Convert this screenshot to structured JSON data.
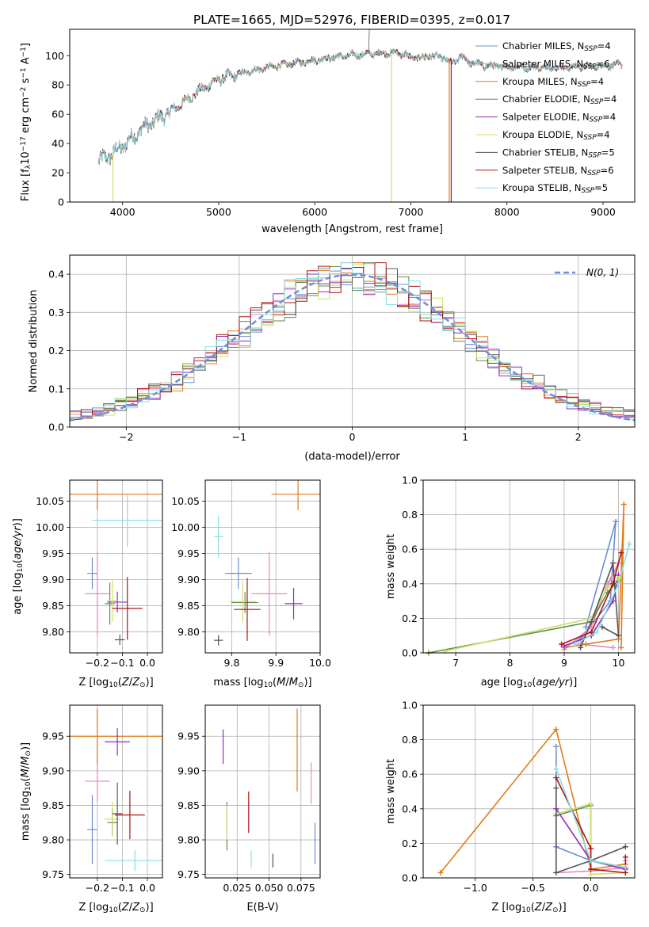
{
  "title": "PLATE=1665, MJD=52976, FIBERID=0395, z=0.017",
  "colors": {
    "Chabrier MILES": "#6b8fd6",
    "Salpeter MILES": "#e987c0",
    "Kroupa MILES": "#e07b1a",
    "Chabrier ELODIE": "#5e8f4e",
    "Salpeter ELODIE": "#8e2bc0",
    "Kroupa ELODIE": "#cfe06a",
    "Chabrier STELIB": "#555555",
    "Salpeter STELIB": "#b01515",
    "Kroupa STELIB": "#86e0e6"
  },
  "legend": [
    {
      "model": "Chabrier MILES",
      "nssp": "4"
    },
    {
      "model": "Salpeter MILES",
      "nssp": "6"
    },
    {
      "model": "Kroupa MILES",
      "nssp": "4"
    },
    {
      "model": "Chabrier ELODIE",
      "nssp": "4"
    },
    {
      "model": "Salpeter ELODIE",
      "nssp": "4"
    },
    {
      "model": "Kroupa ELODIE",
      "nssp": "4"
    },
    {
      "model": "Chabrier STELIB",
      "nssp": "5"
    },
    {
      "model": "Salpeter STELIB",
      "nssp": "6"
    },
    {
      "model": "Kroupa STELIB",
      "nssp": "5"
    }
  ],
  "chart_data": [
    {
      "id": "spectrum",
      "type": "line",
      "xlabel": "wavelength [Angstrom, rest frame]",
      "ylabel": "Flux [fλ10^-17 erg cm^-2 s^-1 A^-1]",
      "xlim": [
        3450,
        9330
      ],
      "ylim": [
        0,
        118
      ],
      "xticks": [
        4000,
        5000,
        6000,
        7000,
        8000,
        9000
      ],
      "yticks": [
        0,
        20,
        40,
        60,
        80,
        100
      ],
      "trend": {
        "x": [
          3750,
          3900,
          4000,
          4200,
          4500,
          4800,
          5000,
          5300,
          5600,
          5900,
          6200,
          6500,
          6800,
          7000,
          7200,
          7400,
          7800,
          8200,
          8600,
          9000,
          9200
        ],
        "y": [
          28,
          33,
          38,
          50,
          62,
          76,
          84,
          89,
          93,
          96,
          99,
          101,
          102,
          101,
          100,
          98,
          93,
          92,
          92,
          93,
          94
        ]
      },
      "drops": [
        {
          "model": "Kroupa ELODIE",
          "x": 3900,
          "y": 0
        },
        {
          "model": "Kroupa ELODIE",
          "x": 6800,
          "y": 0
        },
        {
          "model": "Kroupa MILES",
          "x": 7400,
          "y": 0
        },
        {
          "model": "Salpeter STELIB",
          "x": 7420,
          "y": 0
        }
      ],
      "spike": {
        "model": "Chabrier STELIB",
        "x": 6560,
        "y": 118
      }
    },
    {
      "id": "residual-hist",
      "type": "step",
      "xlabel": "(data-model)/error",
      "ylabel": "Normed distribution",
      "xlim": [
        -2.5,
        2.5
      ],
      "ylim": [
        0,
        0.45
      ],
      "xticks": [
        -2,
        -1,
        0,
        1,
        2
      ],
      "yticks": [
        0.0,
        0.1,
        0.2,
        0.3,
        0.4
      ],
      "legend": "N(0, 1)",
      "bins": 50
    },
    {
      "id": "age-vs-Z",
      "type": "errorbar",
      "xlabel": "Z [log10(Z/Z⊙)]",
      "ylabel": "age [log10(age/yr)]",
      "xlim": [
        -0.31,
        0.06
      ],
      "ylim": [
        9.76,
        10.09
      ],
      "xticks": [
        -0.2,
        -0.1,
        0.0
      ],
      "yticks": [
        9.8,
        9.85,
        9.9,
        9.95,
        10.0,
        10.05
      ],
      "points": [
        {
          "model": "Chabrier MILES",
          "x": -0.22,
          "xerr": 0.02,
          "y": 9.912,
          "yerr": 0.03
        },
        {
          "model": "Salpeter MILES",
          "x": -0.2,
          "xerr": 0.05,
          "y": 9.873,
          "yerr": 0.08
        },
        {
          "model": "Kroupa MILES",
          "x": -0.2,
          "xerr": 0.26,
          "y": 10.063,
          "yerr": 0.03
        },
        {
          "model": "Chabrier ELODIE",
          "x": -0.15,
          "xerr": 0.02,
          "y": 9.854,
          "yerr": 0.04
        },
        {
          "model": "Salpeter ELODIE",
          "x": -0.12,
          "xerr": 0.04,
          "y": 9.857,
          "yerr": 0.02
        },
        {
          "model": "Kroupa ELODIE",
          "x": -0.14,
          "xerr": 0.02,
          "y": 9.86,
          "yerr": 0.04
        },
        {
          "model": "Chabrier STELIB",
          "x": -0.11,
          "xerr": 0.02,
          "y": 9.785,
          "yerr": 0.01
        },
        {
          "model": "Salpeter STELIB",
          "x": -0.08,
          "xerr": 0.06,
          "y": 9.845,
          "yerr": 0.06
        },
        {
          "model": "Kroupa STELIB",
          "x": -0.08,
          "xerr": 0.14,
          "y": 10.013,
          "yerr": 0.05
        }
      ]
    },
    {
      "id": "age-vs-mass",
      "type": "errorbar",
      "xlabel": "mass [log10(M/M⊙)]",
      "ylabel": "",
      "xlim": [
        9.74,
        10.0
      ],
      "ylim": [
        9.76,
        10.09
      ],
      "xticks": [
        9.8,
        9.9,
        10.0
      ],
      "yticks": [
        9.8,
        9.85,
        9.9,
        9.95,
        10.0,
        10.05
      ],
      "points": [
        {
          "model": "Chabrier MILES",
          "x": 9.815,
          "xerr": 0.03,
          "y": 9.912,
          "yerr": 0.03
        },
        {
          "model": "Salpeter MILES",
          "x": 9.885,
          "xerr": 0.04,
          "y": 9.873,
          "yerr": 0.08
        },
        {
          "model": "Kroupa MILES",
          "x": 9.95,
          "xerr": 0.06,
          "y": 10.063,
          "yerr": 0.03
        },
        {
          "model": "Chabrier ELODIE",
          "x": 9.83,
          "xerr": 0.03,
          "y": 9.856,
          "yerr": 0.02
        },
        {
          "model": "Salpeter ELODIE",
          "x": 9.94,
          "xerr": 0.02,
          "y": 9.854,
          "yerr": 0.03
        },
        {
          "model": "Kroupa ELODIE",
          "x": 9.825,
          "xerr": 0.03,
          "y": 9.858,
          "yerr": 0.04
        },
        {
          "model": "Chabrier STELIB",
          "x": 9.77,
          "xerr": 0.01,
          "y": 9.784,
          "yerr": 0.01
        },
        {
          "model": "Salpeter STELIB",
          "x": 9.835,
          "xerr": 0.03,
          "y": 9.843,
          "yerr": 0.06
        },
        {
          "model": "Kroupa STELIB",
          "x": 9.77,
          "xerr": 0.01,
          "y": 9.982,
          "yerr": 0.04
        }
      ]
    },
    {
      "id": "weight-vs-age",
      "type": "line",
      "xlabel": "age [log10(age/yr)]",
      "ylabel": "mass weight",
      "xlim": [
        6.4,
        10.3
      ],
      "ylim": [
        0,
        1.0
      ],
      "xticks": [
        7,
        8,
        9,
        10
      ],
      "yticks": [
        0.0,
        0.2,
        0.4,
        0.6,
        0.8,
        1.0
      ],
      "series": [
        {
          "model": "Chabrier MILES",
          "x": [
            9.3,
            9.85,
            9.95,
            9.4
          ],
          "y": [
            0.08,
            0.3,
            0.76,
            0.15
          ]
        },
        {
          "model": "Salpeter MILES",
          "x": [
            9.0,
            9.5,
            9.8,
            10.0,
            9.3,
            9.9
          ],
          "y": [
            0.02,
            0.15,
            0.4,
            0.52,
            0.05,
            0.03
          ]
        },
        {
          "model": "Kroupa MILES",
          "x": [
            9.0,
            9.4,
            10.0,
            10.1,
            10.05
          ],
          "y": [
            0.03,
            0.05,
            0.08,
            0.86,
            0.03
          ]
        },
        {
          "model": "Chabrier ELODIE",
          "x": [
            6.5,
            9.5,
            9.8,
            10.0
          ],
          "y": [
            0.0,
            0.18,
            0.35,
            0.42
          ]
        },
        {
          "model": "Salpeter ELODIE",
          "x": [
            9.0,
            9.5,
            9.9,
            10.0
          ],
          "y": [
            0.04,
            0.1,
            0.3,
            0.45
          ]
        },
        {
          "model": "Kroupa ELODIE",
          "x": [
            6.8,
            9.5,
            9.8,
            10.0
          ],
          "y": [
            0.01,
            0.2,
            0.38,
            0.43
          ]
        },
        {
          "model": "Chabrier STELIB",
          "x": [
            9.3,
            9.5,
            9.9,
            10.0,
            9.7
          ],
          "y": [
            0.03,
            0.18,
            0.52,
            0.1,
            0.15
          ]
        },
        {
          "model": "Salpeter STELIB",
          "x": [
            8.95,
            9.5,
            9.9,
            10.05
          ],
          "y": [
            0.05,
            0.12,
            0.4,
            0.58
          ]
        },
        {
          "model": "Kroupa STELIB",
          "x": [
            9.2,
            9.6,
            10.0,
            10.2
          ],
          "y": [
            0.05,
            0.12,
            0.4,
            0.63
          ]
        }
      ]
    },
    {
      "id": "mass-vs-Z",
      "type": "errorbar",
      "xlabel": "Z [log10(Z/Z⊙)]",
      "ylabel": "mass [log10(M/M⊙)]",
      "xlim": [
        -0.31,
        0.06
      ],
      "ylim": [
        9.745,
        9.995
      ],
      "xticks": [
        -0.2,
        -0.1,
        0.0
      ],
      "yticks": [
        9.75,
        9.8,
        9.85,
        9.9,
        9.95
      ],
      "points": [
        {
          "model": "Chabrier MILES",
          "x": -0.22,
          "xerr": 0.02,
          "y": 9.815,
          "yerr": 0.05
        },
        {
          "model": "Salpeter MILES",
          "x": -0.2,
          "xerr": 0.05,
          "y": 9.885,
          "yerr": 0.03
        },
        {
          "model": "Kroupa MILES",
          "x": -0.2,
          "xerr": 0.26,
          "y": 9.95,
          "yerr": 0.04
        },
        {
          "model": "Chabrier ELODIE",
          "x": -0.14,
          "xerr": 0.02,
          "y": 9.825,
          "yerr": 0.02
        },
        {
          "model": "Salpeter ELODIE",
          "x": -0.12,
          "xerr": 0.05,
          "y": 9.942,
          "yerr": 0.02
        },
        {
          "model": "Kroupa ELODIE",
          "x": -0.14,
          "xerr": 0.03,
          "y": 9.83,
          "yerr": 0.025
        },
        {
          "model": "Chabrier STELIB",
          "x": -0.12,
          "xerr": 0.02,
          "y": 9.838,
          "yerr": 0.045
        },
        {
          "model": "Salpeter STELIB",
          "x": -0.07,
          "xerr": 0.06,
          "y": 9.836,
          "yerr": 0.035
        },
        {
          "model": "Kroupa STELIB",
          "x": -0.05,
          "xerr": 0.12,
          "y": 9.77,
          "yerr": 0.015
        }
      ]
    },
    {
      "id": "mass-vs-ebv",
      "type": "errorbar",
      "xlabel": "E(B-V)",
      "ylabel": "",
      "xlim": [
        0.0,
        0.09
      ],
      "ylim": [
        9.745,
        9.995
      ],
      "xticks": [
        0.025,
        0.05,
        0.075
      ],
      "yticks": [
        9.75,
        9.8,
        9.85,
        9.9,
        9.95
      ],
      "points": [
        {
          "model": "Chabrier MILES",
          "x": 0.086,
          "xerr": 0.0,
          "y": 9.795,
          "yerr": 0.03
        },
        {
          "model": "Salpeter MILES",
          "x": 0.083,
          "xerr": 0.0,
          "y": 9.882,
          "yerr": 0.03
        },
        {
          "model": "Kroupa MILES",
          "x": 0.072,
          "xerr": 0.0,
          "y": 9.93,
          "yerr": 0.06
        },
        {
          "model": "Chabrier ELODIE",
          "x": 0.017,
          "xerr": 0.0,
          "y": 9.82,
          "yerr": 0.035
        },
        {
          "model": "Salpeter ELODIE",
          "x": 0.014,
          "xerr": 0.0,
          "y": 9.935,
          "yerr": 0.025
        },
        {
          "model": "Kroupa ELODIE",
          "x": 0.017,
          "xerr": 0.0,
          "y": 9.825,
          "yerr": 0.025
        },
        {
          "model": "Chabrier STELIB",
          "x": 0.053,
          "xerr": 0.0,
          "y": 9.77,
          "yerr": 0.01
        },
        {
          "model": "Salpeter STELIB",
          "x": 0.034,
          "xerr": 0.0,
          "y": 9.84,
          "yerr": 0.03
        },
        {
          "model": "Kroupa STELIB",
          "x": 0.036,
          "xerr": 0.0,
          "y": 9.772,
          "yerr": 0.012
        }
      ]
    },
    {
      "id": "weight-vs-Z",
      "type": "line",
      "xlabel": "Z [log10(Z/Z⊙)]",
      "ylabel": "mass weight",
      "xlim": [
        -1.45,
        0.38
      ],
      "ylim": [
        0,
        1.0
      ],
      "xticks": [
        -1.0,
        -0.5,
        0.0
      ],
      "yticks": [
        0.0,
        0.2,
        0.4,
        0.6,
        0.8,
        1.0
      ],
      "series": [
        {
          "model": "Kroupa MILES",
          "x": [
            -1.3,
            -0.3,
            0.0,
            0.3
          ],
          "y": [
            0.03,
            0.86,
            0.05,
            0.08
          ]
        },
        {
          "model": "Chabrier MILES",
          "x": [
            -0.3,
            -0.3,
            0.0,
            0.3
          ],
          "y": [
            0.76,
            0.18,
            0.1,
            0.06
          ]
        },
        {
          "model": "Salpeter MILES",
          "x": [
            -0.3,
            0.0,
            0.3,
            0.3
          ],
          "y": [
            0.03,
            0.04,
            0.06,
            0.1
          ]
        },
        {
          "model": "Chabrier ELODIE",
          "x": [
            -0.3,
            0.0,
            0.0,
            0.3
          ],
          "y": [
            0.36,
            0.42,
            0.1,
            0.06
          ]
        },
        {
          "model": "Salpeter ELODIE",
          "x": [
            -0.3,
            0.0,
            0.3
          ],
          "y": [
            0.4,
            0.1,
            0.05
          ]
        },
        {
          "model": "Kroupa ELODIE",
          "x": [
            -0.3,
            0.0,
            0.0,
            0.3
          ],
          "y": [
            0.37,
            0.43,
            0.02,
            0.03
          ]
        },
        {
          "model": "Chabrier STELIB",
          "x": [
            -0.3,
            -0.3,
            0.0,
            0.3
          ],
          "y": [
            0.52,
            0.03,
            0.1,
            0.18
          ]
        },
        {
          "model": "Salpeter STELIB",
          "x": [
            -0.3,
            0.0,
            0.0,
            0.3,
            0.3
          ],
          "y": [
            0.58,
            0.17,
            0.05,
            0.03,
            0.12
          ]
        },
        {
          "model": "Kroupa STELIB",
          "x": [
            -0.3,
            0.0,
            0.3
          ],
          "y": [
            0.63,
            0.1,
            0.06
          ]
        }
      ]
    }
  ]
}
